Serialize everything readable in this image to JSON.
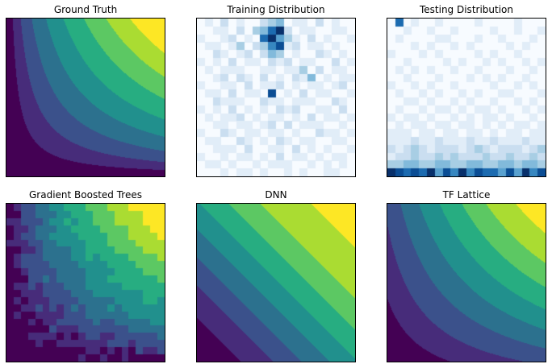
{
  "figure": {
    "background": "#ffffff",
    "rows": 2,
    "cols": 3
  },
  "palettes": {
    "viridis": [
      "#440154",
      "#472c7a",
      "#3b518b",
      "#2c718e",
      "#21908d",
      "#27ad81",
      "#5cc863",
      "#aadc32",
      "#fde725"
    ],
    "blues": [
      "#f7fbff",
      "#e1edf8",
      "#cadef0",
      "#a8cee4",
      "#82badb",
      "#59a1cf",
      "#3787c0",
      "#1c6bb0",
      "#0b4d94",
      "#08306b"
    ]
  },
  "chart_data": [
    {
      "type": "contour",
      "title": "Ground Truth",
      "fn": "product",
      "palette": "viridis",
      "levels": [
        0.04,
        0.09,
        0.16,
        0.25,
        0.36,
        0.49,
        0.63,
        0.78
      ],
      "x_range": [
        0,
        1
      ],
      "y_range": [
        0,
        1
      ],
      "ticks": "none"
    },
    {
      "type": "heatmap",
      "title": "Training Distribution",
      "palette": "blues",
      "ticks": "none",
      "rows": [
        "01020100234011020100",
        "00110203479201100110",
        "10012010795310201001",
        "01101302368120110100",
        "00210120243010021010",
        "10102011021201100201",
        "01011100110113020110",
        "00120210201021401011",
        "10011020112010110120",
        "01102011080102011001",
        "00211100211011100210",
        "10102010102120011020",
        "01011201011010201101",
        "00110110120201110010",
        "10021011011010021101",
        "01100210102101100110",
        "00111020011020101001",
        "10010110102011010110",
        "01101001011100101010",
        "00010110100101001100"
      ]
    },
    {
      "type": "heatmap",
      "title": "Testing Distribution",
      "palette": "blues",
      "ticks": "none",
      "rows": [
        "07010010000100001000",
        "00100100100001001001",
        "01000011000100100010",
        "00010100101000010100",
        "10001010000101001000",
        "00100001010010100101",
        "01010100100100010010",
        "00100010001010100100",
        "10010100100001001010",
        "01001010010100110001",
        "00110100101001001010",
        "01001011010110100101",
        "10110100101011010010",
        "01011011011010101101",
        "11101101101101011011",
        "11121121112112111211",
        "21232122212321222123",
        "12232232322232232232",
        "33443344334433443443",
        "98787958696877585968"
      ]
    },
    {
      "type": "contour",
      "title": "Gradient Boosted Trees",
      "fn": "product",
      "palette": "viridis",
      "levels": [
        0.04,
        0.09,
        0.16,
        0.25,
        0.36,
        0.49,
        0.63,
        0.78
      ],
      "blocky": true,
      "grid": 22,
      "jitter": 0.07,
      "x_range": [
        0,
        1
      ],
      "y_range": [
        0,
        1
      ],
      "ticks": "none"
    },
    {
      "type": "contour",
      "title": "DNN",
      "fn": "sum",
      "palette": "viridis",
      "levels": [
        0.14,
        0.24,
        0.33,
        0.42,
        0.51,
        0.6,
        0.7,
        0.86
      ],
      "x_range": [
        0,
        1
      ],
      "y_range": [
        0,
        1
      ],
      "ticks": "none"
    },
    {
      "type": "contour",
      "title": "TF Lattice",
      "fn": "blend",
      "blend_weight": 0.7,
      "palette": "viridis",
      "levels": [
        0.06,
        0.13,
        0.22,
        0.32,
        0.43,
        0.55,
        0.68,
        0.84
      ],
      "x_range": [
        0,
        1
      ],
      "y_range": [
        0,
        1
      ],
      "ticks": "none"
    }
  ]
}
